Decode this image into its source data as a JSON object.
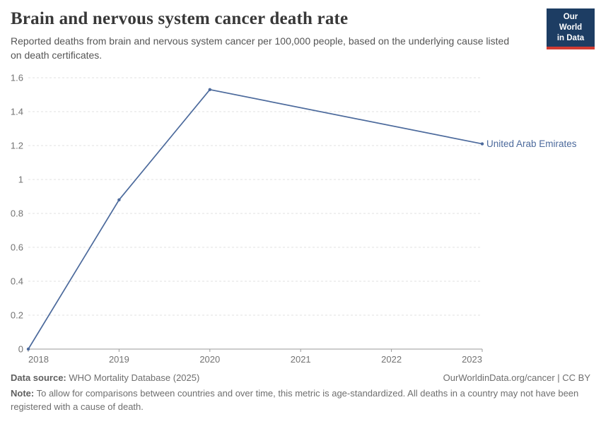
{
  "header": {
    "title": "Brain and nervous system cancer death rate",
    "subtitle": "Reported deaths from brain and nervous system cancer per 100,000 people, based on the underlying cause listed on death certificates."
  },
  "logo": {
    "line1": "Our World",
    "line2": "in Data",
    "bg_color": "#1d3d63",
    "stripe_color": "#d13b32"
  },
  "chart_data": {
    "type": "line",
    "title": "Brain and nervous system cancer death rate",
    "xlabel": "",
    "ylabel": "",
    "xlim": [
      2018,
      2023
    ],
    "ylim": [
      0,
      1.6
    ],
    "xticks": [
      2018,
      2019,
      2020,
      2021,
      2022,
      2023
    ],
    "yticks": [
      0,
      0.2,
      0.4,
      0.6,
      0.8,
      1,
      1.2,
      1.4,
      1.6
    ],
    "grid": "horizontal-dashed",
    "legend_position": "end-of-line-label",
    "series": [
      {
        "name": "United Arab Emirates",
        "color": "#4c6a9c",
        "points": [
          {
            "x": 2018,
            "y": 0
          },
          {
            "x": 2019,
            "y": 0.88
          },
          {
            "x": 2020,
            "y": 1.53
          },
          {
            "x": 2023,
            "y": 1.21
          }
        ]
      }
    ]
  },
  "style": {
    "gridline_color": "#e2e2e2",
    "axis_color": "#9a9a9a",
    "tick_label_color": "#737373"
  },
  "footer": {
    "datasource_label": "Data source:",
    "datasource_value": " WHO Mortality Database (2025)",
    "link": "OurWorldinData.org/cancer | CC BY",
    "note_label": "Note:",
    "note_value": " To allow for comparisons between countries and over time, this metric is age-standardized. All deaths in a country may not have been registered with a cause of death."
  }
}
